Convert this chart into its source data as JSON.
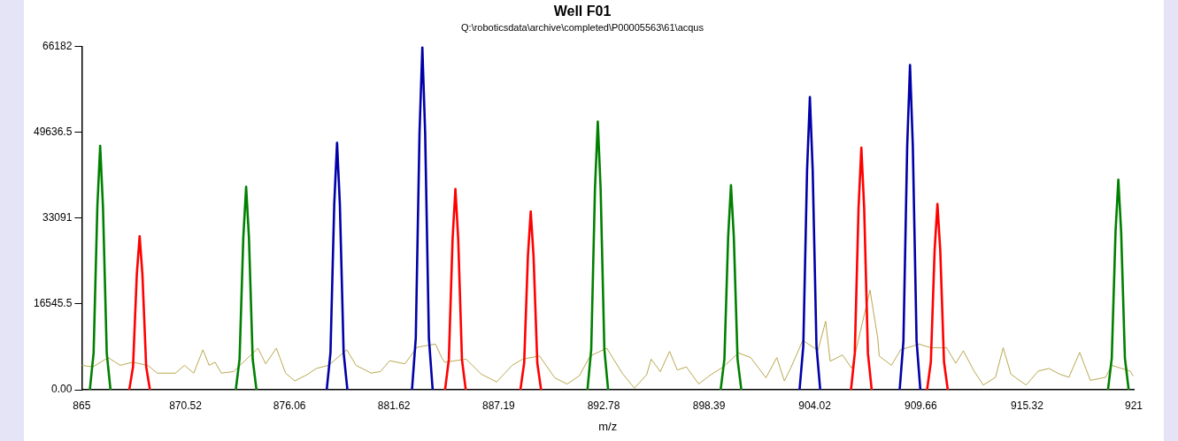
{
  "chart_data": {
    "type": "line",
    "title": "Well F01",
    "subtitle": "Q:\\roboticsdata\\archive\\completed\\P00005563\\61\\acqus",
    "xlabel": "m/z",
    "xlim": [
      865,
      921
    ],
    "xticks": [
      865,
      870.52,
      876.06,
      881.62,
      887.19,
      892.78,
      898.39,
      904.02,
      909.66,
      915.32,
      921
    ],
    "ylim": [
      0,
      66182
    ],
    "yticks": [
      {
        "value": 0,
        "label": "0.00"
      },
      16545.5,
      33091,
      49636.5,
      66182
    ],
    "grid": false,
    "legend": false,
    "marker": "none",
    "line_style": "solid",
    "series": [
      {
        "color": "#b8a850",
        "x": [
          865.01,
          865.59,
          866.4,
          867.05,
          867.7,
          868.52,
          869.01,
          869.98,
          870.47,
          870.96,
          871.45,
          871.78,
          872.1,
          872.43,
          873.08,
          874.38,
          874.79,
          875.36,
          875.85,
          876.34,
          876.99,
          877.48,
          878.13,
          879.11,
          879.6,
          880.41,
          880.9,
          881.39,
          882.2,
          882.85,
          883.83,
          884.16,
          884.32,
          885.46,
          886.27,
          887.09,
          887.91,
          888.47,
          889.37,
          890.18,
          890.84,
          891.49,
          892.06,
          892.95,
          893.77,
          894.42,
          895.07,
          895.31,
          895.8,
          896.29,
          896.7,
          897.19,
          897.84,
          898.49,
          899.15,
          899.96,
          900.61,
          901.42,
          902.0,
          902.4,
          902.73,
          903.38,
          904.19,
          904.6,
          904.84,
          905.5,
          905.99,
          906.96,
          907.37,
          907.45,
          908.1,
          908.59,
          909.57,
          910.2,
          911.04,
          911.52,
          911.93,
          912.5,
          912.99,
          913.64,
          914.05,
          914.46,
          915.27,
          915.92,
          916.49,
          917.06,
          917.55,
          918.12,
          918.69,
          919.5,
          919.83,
          920.81,
          920.96
        ],
        "values": [
          4700,
          4400,
          6200,
          4700,
          5300,
          4700,
          3200,
          3200,
          4700,
          3200,
          7700,
          4700,
          5300,
          3200,
          3500,
          8000,
          5000,
          8000,
          3200,
          1700,
          2900,
          4100,
          4700,
          7700,
          4700,
          3200,
          3500,
          5600,
          5000,
          8200,
          8800,
          6200,
          5300,
          5900,
          3000,
          1500,
          4700,
          5900,
          6500,
          2300,
          1100,
          2700,
          6500,
          8000,
          3200,
          300,
          2900,
          5900,
          3500,
          7400,
          3800,
          4400,
          1100,
          2900,
          4400,
          7100,
          6200,
          2300,
          6200,
          1700,
          4100,
          9500,
          7600,
          13200,
          5500,
          6700,
          4100,
          19200,
          10000,
          6500,
          4700,
          7700,
          8800,
          8100,
          8100,
          5100,
          7500,
          3600,
          900,
          2400,
          8100,
          3000,
          900,
          3600,
          4100,
          3000,
          2400,
          7200,
          1800,
          2400,
          4700,
          3600,
          2700
        ]
      },
      {
        "color": "#008000",
        "x": [
          865.43,
          865.63,
          865.83,
          865.98,
          866.13,
          866.33,
          866.53,
          870,
          873.2,
          873.4,
          873.6,
          873.75,
          873.9,
          874.1,
          874.3,
          883,
          891.92,
          892.12,
          892.32,
          892.47,
          892.62,
          892.82,
          893.02,
          896,
          899.01,
          899.21,
          899.41,
          899.56,
          899.71,
          899.91,
          900.11,
          910,
          919.63,
          919.83,
          920.03,
          920.18,
          920.33,
          920.53,
          920.73
        ],
        "values": [
          0,
          7050,
          35250,
          47000,
          35250,
          7050,
          0,
          null,
          0,
          5870,
          29330,
          39100,
          29330,
          5870,
          0,
          null,
          0,
          7760,
          38780,
          51700,
          38780,
          7760,
          0,
          null,
          0,
          5910,
          29550,
          39400,
          29550,
          5910,
          0,
          null,
          0,
          6080,
          30380,
          40500,
          30380,
          6080,
          0
        ]
      },
      {
        "color": "#ff0000",
        "x": [
          867.53,
          867.73,
          867.93,
          868.08,
          868.23,
          868.43,
          868.63,
          876,
          884.34,
          884.54,
          884.74,
          884.89,
          885.04,
          885.24,
          885.44,
          887,
          888.35,
          888.55,
          888.75,
          888.9,
          889.05,
          889.25,
          889.45,
          898,
          905.95,
          906.15,
          906.35,
          906.5,
          906.65,
          906.85,
          907.05,
          908,
          910.0,
          910.2,
          910.4,
          910.55,
          910.7,
          910.9,
          911.1
        ],
        "values": [
          0,
          4440,
          22200,
          29600,
          22200,
          4440,
          0,
          null,
          0,
          5810,
          29030,
          38700,
          29030,
          5810,
          0,
          null,
          0,
          5150,
          25760,
          34350,
          25760,
          5150,
          0,
          null,
          0,
          7000,
          34990,
          46650,
          34990,
          7000,
          0,
          null,
          0,
          5370,
          26850,
          35800,
          26850,
          5370,
          0
        ]
      },
      {
        "color": "#0000a8",
        "x": [
          878.04,
          878.24,
          878.44,
          878.59,
          878.74,
          878.94,
          879.14,
          881,
          882.58,
          882.78,
          882.98,
          883.13,
          883.28,
          883.48,
          883.68,
          893,
          903.21,
          903.41,
          903.61,
          903.76,
          903.91,
          904.11,
          904.31,
          906,
          908.54,
          908.74,
          908.94,
          909.09,
          909.24,
          909.44,
          909.64
        ],
        "values": [
          0,
          7140,
          35700,
          47600,
          35700,
          7140,
          0,
          null,
          0,
          9900,
          49500,
          66000,
          49500,
          9900,
          0,
          null,
          0,
          8460,
          42300,
          56400,
          42300,
          8460,
          0,
          null,
          0,
          9390,
          46950,
          62600,
          46950,
          9390,
          0
        ]
      }
    ]
  }
}
